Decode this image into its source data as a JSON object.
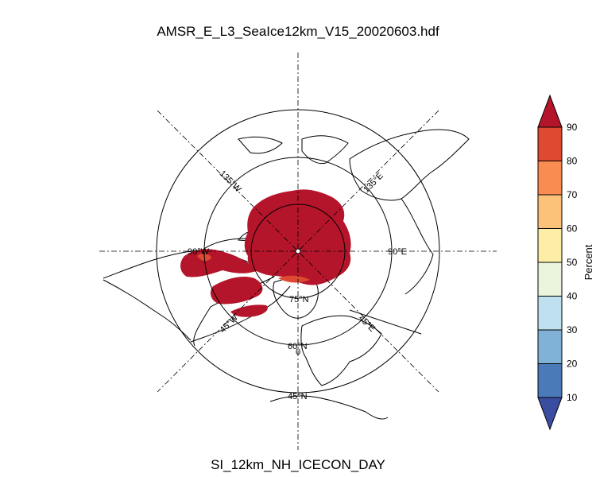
{
  "title": "AMSR_E_L3_SeaIce12km_V15_20020603.hdf",
  "subtitle": "SI_12km_NH_ICECON_DAY",
  "map": {
    "projection": "north-polar-stereographic",
    "latitude_labels": [
      "75°N",
      "60°N",
      "45°N"
    ],
    "longitude_labels": [
      "135°W",
      "135°E",
      "90°W",
      "90°E",
      "45°W",
      "45°E",
      "0"
    ],
    "ice_color": "#b5152b",
    "coast_color": "#000000",
    "grid_color": "#000000"
  },
  "colorbar": {
    "label": "Percent",
    "ticks": [
      "10",
      "20",
      "30",
      "40",
      "50",
      "60",
      "70",
      "80",
      "90"
    ],
    "colors": [
      "#3b4da1",
      "#4b7ab8",
      "#7fb2d6",
      "#bfe0ee",
      "#ebf5dd",
      "#fdeea7",
      "#fdc27a",
      "#f88c51",
      "#de4a31",
      "#b5152b"
    ]
  }
}
